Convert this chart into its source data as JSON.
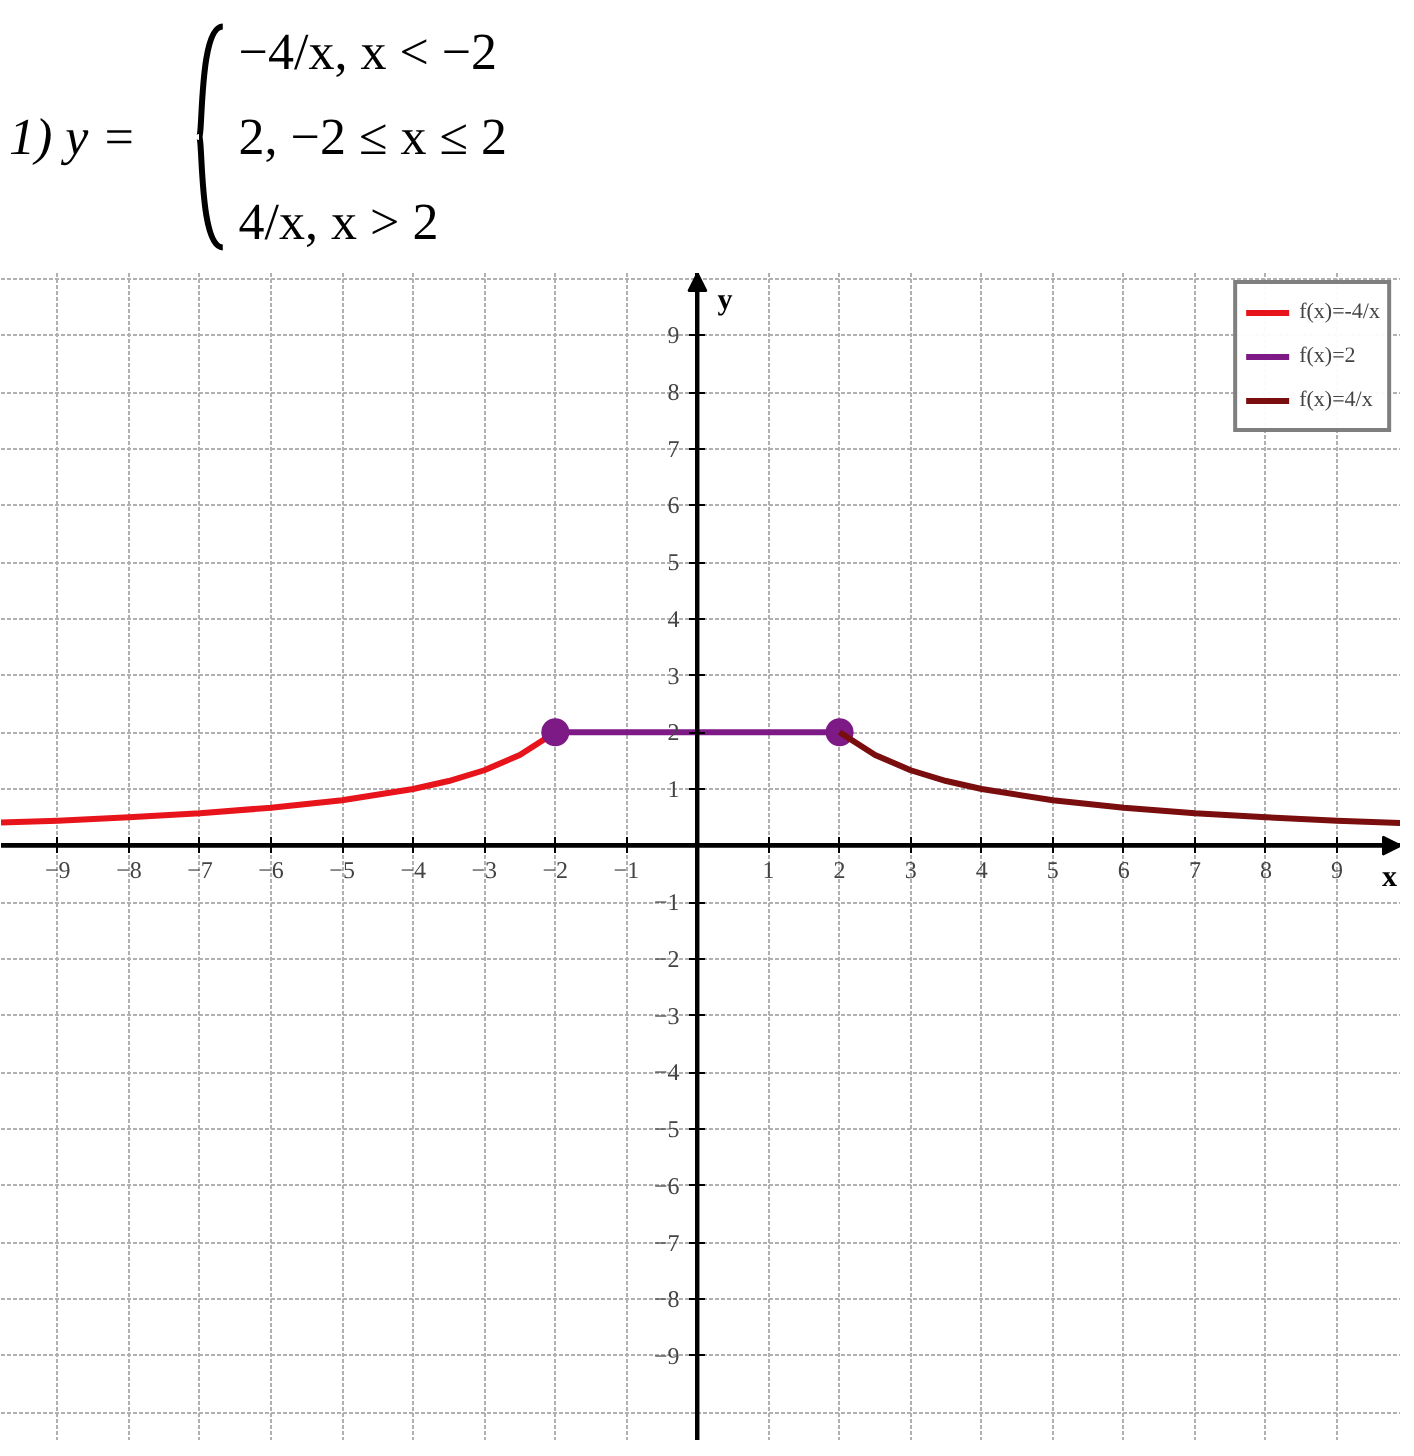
{
  "chart_data": {
    "type": "line",
    "title": "1) y =",
    "annotations": [
      "−4/x,        x < −2",
      "2,        −2 ≤ x ≤ 2",
      "4/x,        x > 2"
    ],
    "xlabel": "x",
    "ylabel": "y",
    "xlim": [
      -9.8,
      9.9
    ],
    "ylim": [
      -10.5,
      10.1
    ],
    "xticks": [
      -9,
      -8,
      -7,
      -6,
      -5,
      -4,
      -3,
      -2,
      -1,
      1,
      2,
      3,
      4,
      5,
      6,
      7,
      8,
      9
    ],
    "yticks": [
      -9,
      -8,
      -7,
      -6,
      -5,
      -4,
      -3,
      -2,
      -1,
      1,
      2,
      3,
      4,
      5,
      6,
      7,
      8,
      9
    ],
    "grid": true,
    "legend": "top right",
    "series": [
      {
        "name": "f(x)=-4/x",
        "color": "#e8141b",
        "x": [
          -9.8,
          -9,
          -8,
          -7,
          -6,
          -5,
          -4,
          -3.5,
          -3,
          -2.5,
          -2
        ],
        "values": [
          0.41,
          0.44,
          0.5,
          0.57,
          0.67,
          0.8,
          1,
          1.14,
          1.33,
          1.6,
          2
        ]
      },
      {
        "name": "f(x)=2",
        "color": "#7d1a86",
        "marker": "circle",
        "x": [
          -2,
          2
        ],
        "values": [
          2,
          2
        ]
      },
      {
        "name": "f(x)=4/x",
        "color": "#7a0d0d",
        "x": [
          2,
          2.5,
          3,
          3.5,
          4,
          5,
          6,
          7,
          8,
          9,
          9.9
        ],
        "values": [
          2,
          1.6,
          1.33,
          1.14,
          1,
          0.8,
          0.67,
          0.57,
          0.5,
          0.44,
          0.4
        ]
      }
    ]
  }
}
